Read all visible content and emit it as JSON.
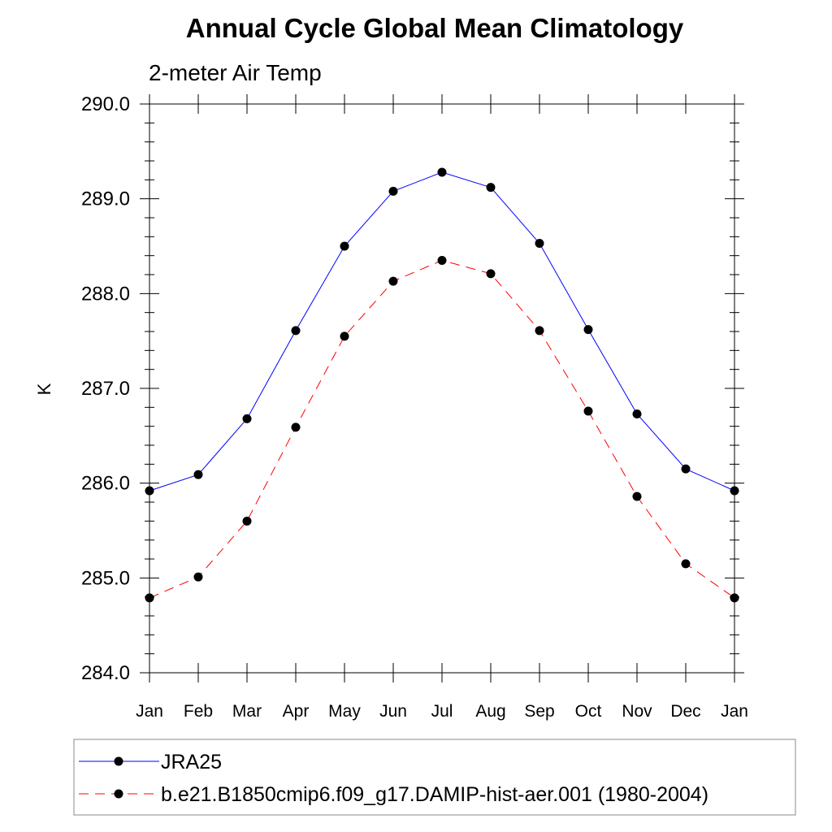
{
  "chart_data": {
    "type": "line",
    "title": "Annual Cycle Global Mean Climatology",
    "subtitle": "2-meter Air Temp",
    "xlabel": "",
    "ylabel": "K",
    "categories": [
      "Jan",
      "Feb",
      "Mar",
      "Apr",
      "May",
      "Jun",
      "Jul",
      "Aug",
      "Sep",
      "Oct",
      "Nov",
      "Dec",
      "Jan"
    ],
    "ylim": [
      284.0,
      290.0
    ],
    "yticks": [
      "284.0",
      "285.0",
      "286.0",
      "287.0",
      "288.0",
      "289.0",
      "290.0"
    ],
    "grid": false,
    "legend_position": "bottom",
    "series": [
      {
        "name": "JRA25",
        "color": "#0000ff",
        "dash": "solid",
        "marker": "filled-circle",
        "values": [
          285.92,
          286.09,
          286.68,
          287.61,
          288.5,
          289.08,
          289.28,
          289.12,
          288.53,
          287.62,
          286.73,
          286.15,
          285.92
        ]
      },
      {
        "name": "b.e21.B1850cmip6.f09_g17.DAMIP-hist-aer.001 (1980-2004)",
        "color": "#ff0000",
        "dash": "dashed",
        "marker": "filled-circle",
        "values": [
          284.79,
          285.01,
          285.6,
          286.59,
          287.55,
          288.13,
          288.35,
          288.21,
          287.61,
          286.76,
          285.86,
          285.15,
          284.79
        ]
      }
    ]
  }
}
